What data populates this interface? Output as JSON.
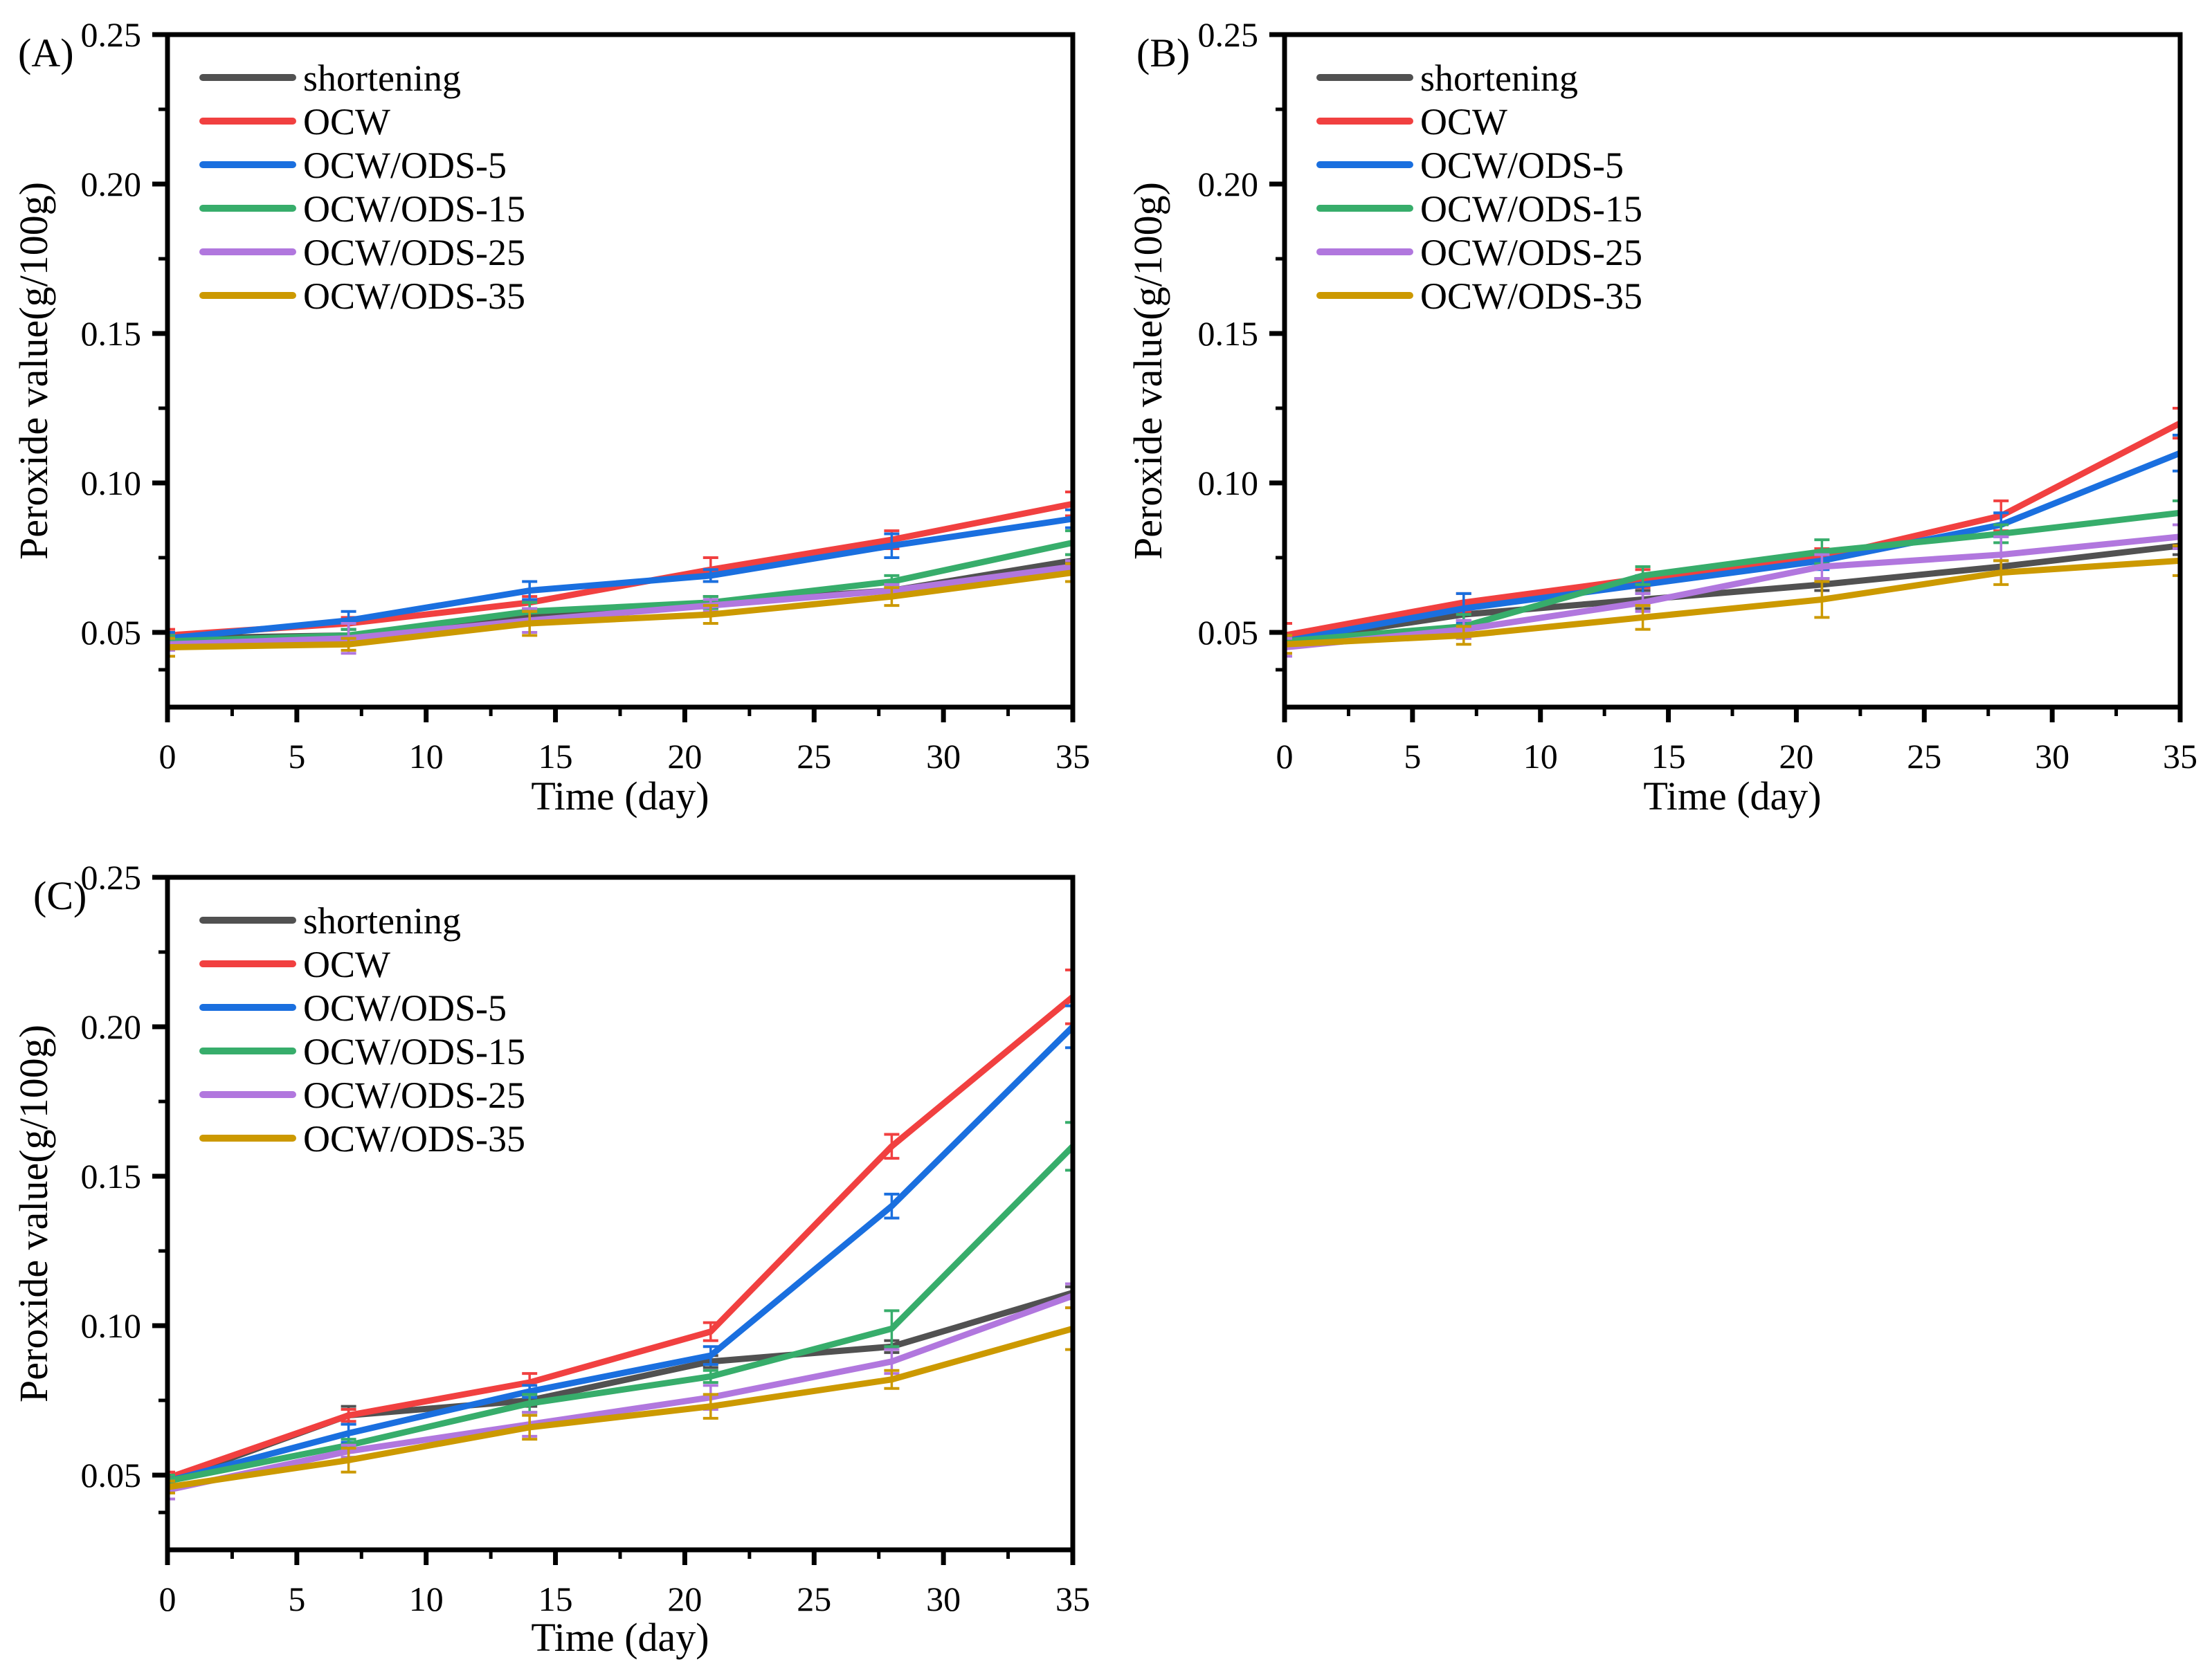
{
  "figure": {
    "background": "#ffffff",
    "axis_color": "#000000",
    "text_color": "#000000"
  },
  "chart_data": [
    {
      "id": "A",
      "panel_label": "(A)",
      "type": "line",
      "xlabel": "Time (day)",
      "ylabel": "Peroxide value(g/100g)",
      "x": [
        0,
        7,
        14,
        21,
        28,
        35
      ],
      "xlim": [
        0,
        35
      ],
      "ylim": [
        0.025,
        0.25
      ],
      "x_major_ticks": [
        0,
        5,
        10,
        15,
        20,
        25,
        30,
        35
      ],
      "x_minor_ticks": [
        2.5,
        7.5,
        12.5,
        17.5,
        22.5,
        27.5,
        32.5
      ],
      "x_tick_labels": [
        "0",
        "5",
        "10",
        "15",
        "20",
        "25",
        "30",
        "35"
      ],
      "y_major_ticks": [
        0.05,
        0.1,
        0.15,
        0.2,
        0.25
      ],
      "y_minor_ticks": [
        0.0375,
        0.075,
        0.125,
        0.175,
        0.225
      ],
      "y_tick_labels": [
        "0.05",
        "0.10",
        "0.15",
        "0.20",
        "0.25"
      ],
      "grid": false,
      "legend_position": "inside top-left",
      "series": [
        {
          "name": "shortening",
          "color": "#515151",
          "values": [
            0.048,
            0.049,
            0.055,
            0.06,
            0.064,
            0.074
          ],
          "errors": [
            0.002,
            0.002,
            0.002,
            0.002,
            0.002,
            0.002
          ]
        },
        {
          "name": "OCW",
          "color": "#F14040",
          "values": [
            0.049,
            0.053,
            0.06,
            0.071,
            0.081,
            0.093
          ],
          "errors": [
            0.002,
            0.002,
            0.002,
            0.004,
            0.003,
            0.004
          ]
        },
        {
          "name": "OCW/ODS-5",
          "color": "#1A6FDF",
          "values": [
            0.048,
            0.054,
            0.064,
            0.069,
            0.079,
            0.088
          ],
          "errors": [
            0.002,
            0.003,
            0.003,
            0.002,
            0.004,
            0.003
          ]
        },
        {
          "name": "OCW/ODS-15",
          "color": "#37AD6B",
          "values": [
            0.047,
            0.049,
            0.057,
            0.06,
            0.067,
            0.08
          ],
          "errors": [
            0.002,
            0.002,
            0.003,
            0.002,
            0.002,
            0.004
          ]
        },
        {
          "name": "OCW/ODS-25",
          "color": "#B177DE",
          "values": [
            0.046,
            0.048,
            0.054,
            0.059,
            0.064,
            0.072
          ],
          "errors": [
            0.002,
            0.005,
            0.004,
            0.002,
            0.002,
            0.002
          ]
        },
        {
          "name": "OCW/ODS-35",
          "color": "#CC9900",
          "values": [
            0.045,
            0.046,
            0.053,
            0.056,
            0.062,
            0.07
          ],
          "errors": [
            0.003,
            0.002,
            0.004,
            0.003,
            0.003,
            0.003
          ]
        }
      ]
    },
    {
      "id": "B",
      "panel_label": "(B)",
      "type": "line",
      "xlabel": "Time (day)",
      "ylabel": "Peroxide value(g/100g)",
      "x": [
        0,
        7,
        14,
        21,
        28,
        35
      ],
      "xlim": [
        0,
        35
      ],
      "ylim": [
        0.025,
        0.25
      ],
      "x_major_ticks": [
        0,
        5,
        10,
        15,
        20,
        25,
        30,
        35
      ],
      "x_minor_ticks": [
        2.5,
        7.5,
        12.5,
        17.5,
        22.5,
        27.5,
        32.5
      ],
      "x_tick_labels": [
        "0",
        "5",
        "10",
        "15",
        "20",
        "25",
        "30",
        "35"
      ],
      "y_major_ticks": [
        0.05,
        0.1,
        0.15,
        0.2,
        0.25
      ],
      "y_minor_ticks": [
        0.0375,
        0.075,
        0.125,
        0.175,
        0.225
      ],
      "y_tick_labels": [
        "0.05",
        "0.10",
        "0.15",
        "0.20",
        "0.25"
      ],
      "grid": false,
      "legend_position": "inside top-left",
      "series": [
        {
          "name": "shortening",
          "color": "#515151",
          "values": [
            0.047,
            0.056,
            0.061,
            0.066,
            0.072,
            0.079
          ],
          "errors": [
            0.002,
            0.002,
            0.003,
            0.002,
            0.002,
            0.003
          ]
        },
        {
          "name": "OCW",
          "color": "#F14040",
          "values": [
            0.049,
            0.06,
            0.068,
            0.075,
            0.089,
            0.12
          ],
          "errors": [
            0.004,
            0.003,
            0.003,
            0.003,
            0.005,
            0.005
          ]
        },
        {
          "name": "OCW/ODS-5",
          "color": "#1A6FDF",
          "values": [
            0.047,
            0.058,
            0.066,
            0.074,
            0.086,
            0.11
          ],
          "errors": [
            0.002,
            0.005,
            0.003,
            0.003,
            0.004,
            0.006
          ]
        },
        {
          "name": "OCW/ODS-15",
          "color": "#37AD6B",
          "values": [
            0.047,
            0.052,
            0.069,
            0.077,
            0.083,
            0.09
          ],
          "errors": [
            0.002,
            0.004,
            0.003,
            0.004,
            0.003,
            0.004
          ]
        },
        {
          "name": "OCW/ODS-25",
          "color": "#B177DE",
          "values": [
            0.045,
            0.051,
            0.06,
            0.072,
            0.076,
            0.082
          ],
          "errors": [
            0.003,
            0.003,
            0.003,
            0.004,
            0.006,
            0.004
          ]
        },
        {
          "name": "OCW/ODS-35",
          "color": "#CC9900",
          "values": [
            0.046,
            0.049,
            0.055,
            0.061,
            0.07,
            0.074
          ],
          "errors": [
            0.003,
            0.003,
            0.004,
            0.006,
            0.004,
            0.005
          ]
        }
      ]
    },
    {
      "id": "C",
      "panel_label": "(C)",
      "type": "line",
      "xlabel": "Time (day)",
      "ylabel": "Peroxide value(g/100g)",
      "x": [
        0,
        7,
        14,
        21,
        28,
        35
      ],
      "xlim": [
        0,
        35
      ],
      "ylim": [
        0.025,
        0.25
      ],
      "x_major_ticks": [
        0,
        5,
        10,
        15,
        20,
        25,
        30,
        35
      ],
      "x_minor_ticks": [
        2.5,
        7.5,
        12.5,
        17.5,
        22.5,
        27.5,
        32.5
      ],
      "x_tick_labels": [
        "0",
        "5",
        "10",
        "15",
        "20",
        "25",
        "30",
        "35"
      ],
      "y_major_ticks": [
        0.05,
        0.1,
        0.15,
        0.2,
        0.25
      ],
      "y_minor_ticks": [
        0.0375,
        0.075,
        0.125,
        0.175,
        0.225
      ],
      "y_tick_labels": [
        "0.05",
        "0.10",
        "0.15",
        "0.20",
        "0.25"
      ],
      "grid": false,
      "legend_position": "inside top-left",
      "series": [
        {
          "name": "shortening",
          "color": "#515151",
          "values": [
            0.048,
            0.07,
            0.075,
            0.088,
            0.093,
            0.111
          ],
          "errors": [
            0.002,
            0.003,
            0.002,
            0.002,
            0.002,
            0.002
          ]
        },
        {
          "name": "OCW",
          "color": "#F14040",
          "values": [
            0.049,
            0.07,
            0.081,
            0.098,
            0.16,
            0.21
          ],
          "errors": [
            0.002,
            0.002,
            0.003,
            0.003,
            0.004,
            0.009
          ]
        },
        {
          "name": "OCW/ODS-5",
          "color": "#1A6FDF",
          "values": [
            0.048,
            0.064,
            0.078,
            0.09,
            0.14,
            0.2
          ],
          "errors": [
            0.002,
            0.003,
            0.002,
            0.003,
            0.004,
            0.007
          ]
        },
        {
          "name": "OCW/ODS-15",
          "color": "#37AD6B",
          "values": [
            0.048,
            0.06,
            0.074,
            0.083,
            0.099,
            0.16
          ],
          "errors": [
            0.002,
            0.002,
            0.003,
            0.002,
            0.006,
            0.008
          ]
        },
        {
          "name": "OCW/ODS-25",
          "color": "#B177DE",
          "values": [
            0.045,
            0.058,
            0.067,
            0.076,
            0.088,
            0.11
          ],
          "errors": [
            0.003,
            0.002,
            0.004,
            0.004,
            0.004,
            0.004
          ]
        },
        {
          "name": "OCW/ODS-35",
          "color": "#CC9900",
          "values": [
            0.046,
            0.055,
            0.066,
            0.073,
            0.082,
            0.099
          ],
          "errors": [
            0.002,
            0.004,
            0.004,
            0.004,
            0.003,
            0.007
          ]
        }
      ]
    }
  ]
}
